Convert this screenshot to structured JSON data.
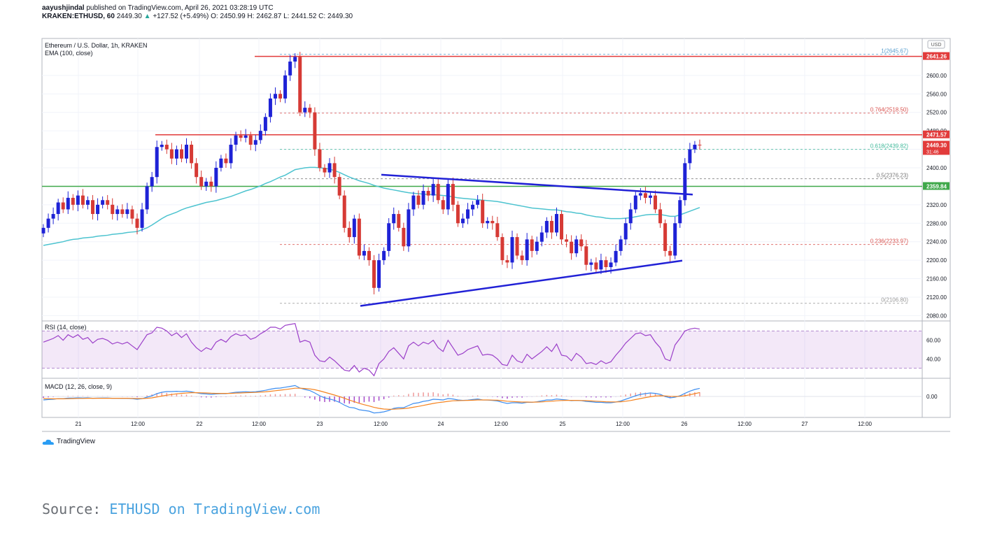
{
  "header": {
    "author": "aayushjindal",
    "published": "published on TradingView.com, April 26, 2021 03:28:19 UTC",
    "symbol": "KRAKEN:ETHUSD, 60",
    "price": "2449.30",
    "change_arrow": "▲",
    "change": "+127.52 (+5.49%)",
    "ohlc": "O: 2450.99 H: 2462.87 L: 2441.52 C: 2449.30"
  },
  "legend": {
    "title": "Ethereum / U.S. Dollar, 1h, KRAKEN",
    "ema": "EMA (100, close)",
    "rsi": "RSI (14, close)",
    "macd": "MACD (12, 26, close, 9)"
  },
  "colors": {
    "bull": "#1e22d6",
    "bear": "#d63a35",
    "ema": "#4cc3cf",
    "resistance": "#e23b3b",
    "support": "#3fa84a",
    "trendline": "#2121d6",
    "fib": "#d9534f",
    "rsi": "#9b3fc9",
    "macd": "#3d8ef0",
    "signal": "#f5831f"
  },
  "chart_data": {
    "type": "candlestick",
    "currency": "USD",
    "ylim": [
      2070,
      2680
    ],
    "y_ticks": [
      "2080.00",
      "2120.00",
      "2160.00",
      "2200.00",
      "2240.00",
      "2280.00",
      "2320.00",
      "2400.00",
      "2440.00",
      "2480.00",
      "2520.00",
      "2560.00",
      "2600.00"
    ],
    "x_ticks": [
      "21",
      "12:00",
      "22",
      "12:00",
      "23",
      "12:00",
      "24",
      "12:00",
      "25",
      "12:00",
      "26",
      "12:00",
      "27",
      "12:00"
    ],
    "price_levels": [
      {
        "label": "2641.26",
        "value": 2641.26,
        "color": "#e23b3b"
      },
      {
        "label": "2471.57",
        "value": 2471.57,
        "color": "#e23b3b"
      },
      {
        "label": "2449.30",
        "value": 2449.3,
        "color": "#e23b3b",
        "sub": "31:46"
      },
      {
        "label": "2359.84",
        "value": 2359.84,
        "color": "#3fa84a"
      }
    ],
    "fibonacci": [
      {
        "label": "1(2645.67)",
        "value": 2645.67,
        "color": "#5aa0d0"
      },
      {
        "label": "0.764(2518.50)",
        "value": 2518.5,
        "color": "#d9534f"
      },
      {
        "label": "0.618(2439.82)",
        "value": 2439.82,
        "color": "#3fb89a"
      },
      {
        "label": "0.5(2376.23)",
        "value": 2376.23,
        "color": "#777777"
      },
      {
        "label": "0.236(2233.97)",
        "value": 2233.97,
        "color": "#d9534f"
      },
      {
        "label": "0(2106.80)",
        "value": 2106.8,
        "color": "#999999"
      }
    ],
    "close": [
      2270,
      2290,
      2300,
      2325,
      2310,
      2335,
      2320,
      2340,
      2320,
      2330,
      2300,
      2320,
      2330,
      2320,
      2300,
      2310,
      2300,
      2310,
      2290,
      2270,
      2310,
      2360,
      2380,
      2445,
      2450,
      2440,
      2420,
      2440,
      2420,
      2450,
      2410,
      2380,
      2360,
      2370,
      2360,
      2400,
      2420,
      2410,
      2450,
      2470,
      2465,
      2470,
      2450,
      2460,
      2480,
      2510,
      2550,
      2560,
      2550,
      2600,
      2630,
      2640,
      2520,
      2530,
      2520,
      2440,
      2400,
      2390,
      2410,
      2380,
      2340,
      2270,
      2250,
      2290,
      2210,
      2220,
      2200,
      2140,
      2200,
      2220,
      2280,
      2300,
      2270,
      2230,
      2310,
      2340,
      2320,
      2350,
      2340,
      2365,
      2330,
      2310,
      2365,
      2320,
      2280,
      2290,
      2310,
      2320,
      2330,
      2280,
      2285,
      2280,
      2250,
      2200,
      2195,
      2250,
      2210,
      2200,
      2245,
      2220,
      2240,
      2260,
      2285,
      2260,
      2300,
      2245,
      2240,
      2215,
      2245,
      2230,
      2190,
      2195,
      2180,
      2200,
      2185,
      2195,
      2220,
      2245,
      2280,
      2310,
      2340,
      2345,
      2335,
      2340,
      2310,
      2280,
      2220,
      2210,
      2280,
      2330,
      2410,
      2440,
      2450,
      2449.3
    ],
    "ema": [
      2232,
      2234,
      2236,
      2238,
      2240,
      2243,
      2245,
      2246,
      2248,
      2249,
      2250,
      2252,
      2253,
      2254,
      2256,
      2257,
      2258,
      2260,
      2261,
      2262,
      2266,
      2270,
      2276,
      2283,
      2290,
      2296,
      2300,
      2304,
      2309,
      2313,
      2316,
      2319,
      2322,
      2325,
      2327,
      2329,
      2332,
      2335,
      2338,
      2342,
      2346,
      2350,
      2353,
      2357,
      2361,
      2366,
      2370,
      2375,
      2380,
      2384,
      2390,
      2396,
      2398,
      2400,
      2401,
      2401,
      2400,
      2399,
      2397,
      2394,
      2390,
      2385,
      2380,
      2376,
      2372,
      2369,
      2366,
      2362,
      2359,
      2356,
      2354,
      2352,
      2350,
      2348,
      2346,
      2345,
      2344,
      2343,
      2342,
      2342,
      2341,
      2340,
      2339,
      2337,
      2335,
      2334,
      2333,
      2332,
      2331,
      2330,
      2329,
      2328,
      2327,
      2325,
      2323,
      2321,
      2319,
      2317,
      2315,
      2313,
      2312,
      2311,
      2310,
      2309,
      2309,
      2307,
      2305,
      2304,
      2302,
      2301,
      2298,
      2296,
      2294,
      2293,
      2291,
      2290,
      2290,
      2290,
      2291,
      2292,
      2294,
      2296,
      2298,
      2299,
      2299,
      2299,
      2297,
      2295,
      2295,
      2298,
      2302,
      2306,
      2310,
      2314
    ],
    "rsi": [
      58,
      60,
      62,
      65,
      60,
      66,
      63,
      66,
      61,
      63,
      57,
      61,
      62,
      60,
      56,
      58,
      56,
      58,
      54,
      50,
      58,
      66,
      68,
      74,
      73,
      70,
      65,
      68,
      63,
      67,
      58,
      52,
      48,
      52,
      50,
      58,
      61,
      58,
      64,
      67,
      65,
      66,
      61,
      63,
      67,
      70,
      74,
      74,
      72,
      76,
      77,
      78,
      58,
      60,
      58,
      44,
      38,
      37,
      42,
      38,
      33,
      28,
      27,
      33,
      26,
      30,
      28,
      22,
      35,
      40,
      48,
      52,
      46,
      40,
      54,
      58,
      54,
      58,
      56,
      60,
      52,
      48,
      60,
      52,
      44,
      46,
      50,
      52,
      54,
      44,
      45,
      44,
      40,
      34,
      33,
      44,
      38,
      36,
      45,
      40,
      44,
      48,
      53,
      48,
      56,
      44,
      43,
      38,
      46,
      42,
      35,
      36,
      34,
      38,
      35,
      37,
      44,
      50,
      57,
      62,
      67,
      68,
      65,
      66,
      58,
      52,
      40,
      38,
      55,
      62,
      70,
      72,
      73,
      72
    ],
    "macd": [
      -0.25,
      -0.22,
      -0.2,
      -0.16,
      -0.16,
      -0.12,
      -0.12,
      -0.1,
      -0.11,
      -0.1,
      -0.13,
      -0.12,
      -0.11,
      -0.11,
      -0.13,
      -0.13,
      -0.14,
      -0.14,
      -0.16,
      -0.2,
      -0.16,
      -0.05,
      0.05,
      0.2,
      0.3,
      0.35,
      0.35,
      0.37,
      0.35,
      0.38,
      0.33,
      0.26,
      0.2,
      0.18,
      0.15,
      0.18,
      0.2,
      0.2,
      0.25,
      0.3,
      0.32,
      0.34,
      0.32,
      0.34,
      0.38,
      0.44,
      0.52,
      0.58,
      0.6,
      0.66,
      0.72,
      0.78,
      0.6,
      0.5,
      0.42,
      0.25,
      0.05,
      -0.1,
      -0.18,
      -0.28,
      -0.42,
      -0.62,
      -0.78,
      -0.82,
      -0.95,
      -1.0,
      -1.05,
      -1.18,
      -1.15,
      -1.1,
      -1.0,
      -0.85,
      -0.8,
      -0.8,
      -0.65,
      -0.5,
      -0.45,
      -0.35,
      -0.3,
      -0.2,
      -0.22,
      -0.25,
      -0.15,
      -0.18,
      -0.25,
      -0.28,
      -0.26,
      -0.22,
      -0.18,
      -0.25,
      -0.26,
      -0.28,
      -0.32,
      -0.42,
      -0.5,
      -0.45,
      -0.45,
      -0.48,
      -0.42,
      -0.42,
      -0.38,
      -0.32,
      -0.25,
      -0.25,
      -0.18,
      -0.22,
      -0.25,
      -0.3,
      -0.28,
      -0.3,
      -0.36,
      -0.38,
      -0.42,
      -0.42,
      -0.45,
      -0.45,
      -0.4,
      -0.32,
      -0.2,
      -0.08,
      0.05,
      0.15,
      0.2,
      0.25,
      0.22,
      0.15,
      0.0,
      -0.1,
      -0.05,
      0.05,
      0.22,
      0.38,
      0.5,
      0.58
    ],
    "signal": [
      -0.15,
      -0.16,
      -0.17,
      -0.17,
      -0.17,
      -0.16,
      -0.15,
      -0.14,
      -0.14,
      -0.13,
      -0.13,
      -0.13,
      -0.13,
      -0.13,
      -0.13,
      -0.13,
      -0.13,
      -0.13,
      -0.14,
      -0.15,
      -0.15,
      -0.13,
      -0.1,
      -0.04,
      0.03,
      0.09,
      0.14,
      0.19,
      0.22,
      0.25,
      0.27,
      0.27,
      0.26,
      0.25,
      0.23,
      0.22,
      0.22,
      0.22,
      0.22,
      0.24,
      0.25,
      0.27,
      0.28,
      0.29,
      0.31,
      0.33,
      0.37,
      0.41,
      0.45,
      0.49,
      0.54,
      0.59,
      0.59,
      0.57,
      0.54,
      0.48,
      0.4,
      0.3,
      0.2,
      0.1,
      -0.01,
      -0.13,
      -0.26,
      -0.37,
      -0.49,
      -0.59,
      -0.68,
      -0.78,
      -0.85,
      -0.9,
      -0.92,
      -0.91,
      -0.89,
      -0.87,
      -0.83,
      -0.77,
      -0.71,
      -0.64,
      -0.57,
      -0.5,
      -0.44,
      -0.4,
      -0.35,
      -0.31,
      -0.3,
      -0.29,
      -0.28,
      -0.27,
      -0.25,
      -0.25,
      -0.25,
      -0.26,
      -0.27,
      -0.3,
      -0.34,
      -0.36,
      -0.38,
      -0.4,
      -0.4,
      -0.41,
      -0.4,
      -0.39,
      -0.36,
      -0.34,
      -0.31,
      -0.29,
      -0.28,
      -0.28,
      -0.28,
      -0.29,
      -0.3,
      -0.32,
      -0.34,
      -0.36,
      -0.38,
      -0.39,
      -0.39,
      -0.38,
      -0.34,
      -0.29,
      -0.22,
      -0.15,
      -0.08,
      -0.02,
      0.03,
      0.05,
      0.04,
      0.01,
      0.0,
      0.01,
      0.05,
      0.12,
      0.2,
      0.28
    ],
    "rsi_ticks": [
      "60.00",
      "40.00"
    ],
    "macd_ticks": [
      "0.00"
    ]
  },
  "branding": {
    "logo": "TradingView"
  },
  "source": {
    "prefix": "Source:",
    "link": "ETHUSD on TradingView.com"
  }
}
